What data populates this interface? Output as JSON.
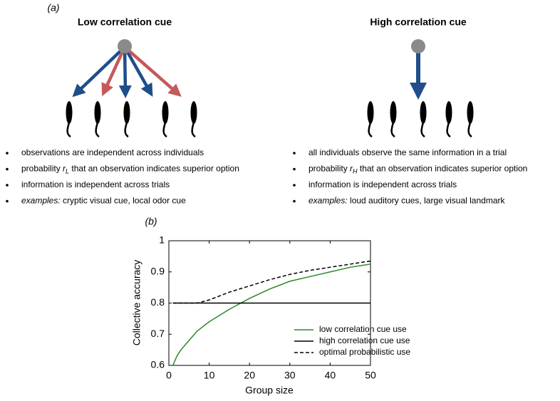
{
  "panel_a": {
    "label": "(a)",
    "left": {
      "title": "Low correlation cue",
      "bullets": [
        [
          {
            "text": "observations are independent across individuals"
          }
        ],
        [
          {
            "text": "probability "
          },
          {
            "text": "r",
            "style": "italic"
          },
          {
            "text": "L",
            "style": "italic-sub"
          },
          {
            "text": " that an observation indicates superior option"
          }
        ],
        [
          {
            "text": "information is independent across trials"
          }
        ],
        [
          {
            "text": "examples:",
            "style": "italic"
          },
          {
            "text": " cryptic visual cue, local odor cue"
          }
        ]
      ]
    },
    "right": {
      "title": "High correlation cue",
      "bullets": [
        [
          {
            "text": "all individuals observe the same information in a trial"
          }
        ],
        [
          {
            "text": "probability "
          },
          {
            "text": "r",
            "style": "italic"
          },
          {
            "text": "H",
            "style": "italic-sub"
          },
          {
            "text": " that an observation indicates superior option"
          }
        ],
        [
          {
            "text": "information is independent across trials"
          }
        ],
        [
          {
            "text": "examples:",
            "style": "italic"
          },
          {
            "text": " loud auditory cues, large visual landmark"
          }
        ]
      ]
    }
  },
  "chart_data": {
    "type": "line",
    "label": "(b)",
    "xlabel": "Group size",
    "ylabel": "Collective accuracy",
    "x": [
      1,
      2,
      3,
      5,
      7,
      10,
      15,
      20,
      25,
      30,
      35,
      40,
      45,
      50
    ],
    "series": [
      {
        "name": "low correlation cue use",
        "color": "#2a8a2a",
        "linestyle": "solid",
        "values": [
          0.6,
          0.63,
          0.65,
          0.68,
          0.71,
          0.74,
          0.78,
          0.815,
          0.845,
          0.87,
          0.885,
          0.9,
          0.915,
          0.925
        ]
      },
      {
        "name": "high correlation cue use",
        "color": "#000000",
        "linestyle": "solid",
        "values": [
          0.8,
          0.8,
          0.8,
          0.8,
          0.8,
          0.8,
          0.8,
          0.8,
          0.8,
          0.8,
          0.8,
          0.8,
          0.8,
          0.8
        ]
      },
      {
        "name": "optimal probabilistic use",
        "color": "#000000",
        "linestyle": "dashed",
        "values": [
          0.8,
          0.8,
          0.8,
          0.8,
          0.8,
          0.81,
          0.835,
          0.855,
          0.875,
          0.892,
          0.905,
          0.915,
          0.925,
          0.935
        ]
      }
    ],
    "xlim": [
      0,
      50
    ],
    "xticks": [
      0,
      10,
      20,
      30,
      40,
      50
    ],
    "ylim": [
      0.6,
      1
    ],
    "yticks": [
      0.6,
      0.7,
      0.8,
      0.9,
      1
    ],
    "legend": "lower right"
  }
}
